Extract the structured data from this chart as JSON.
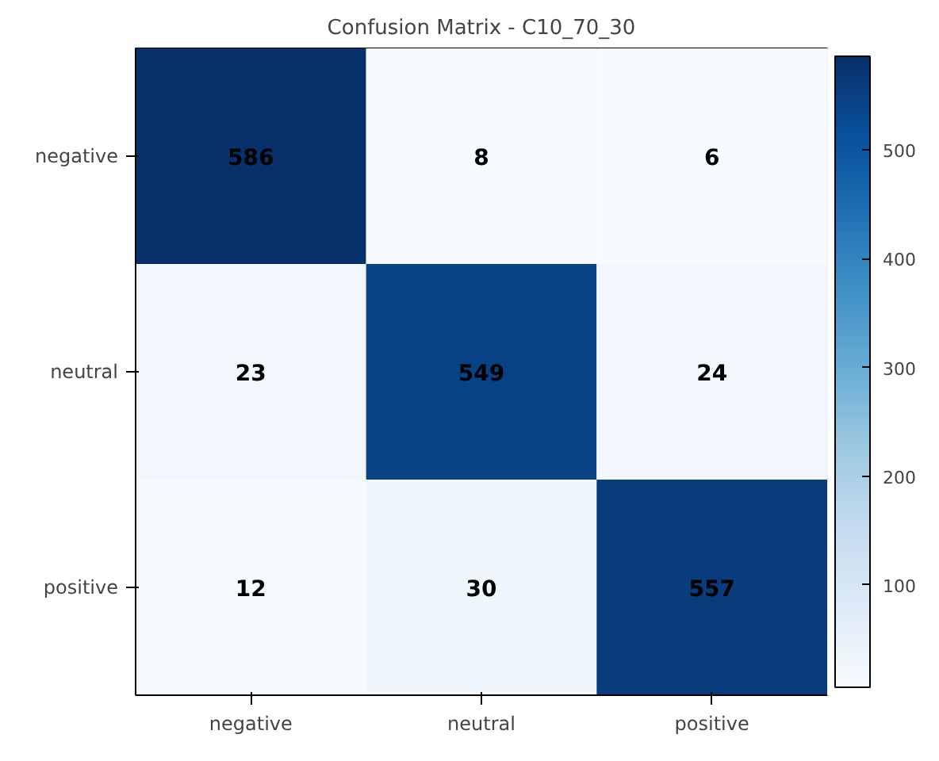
{
  "chart_data": {
    "type": "heatmap",
    "title": "Confusion Matrix - C10_70_30",
    "categories": [
      "negative",
      "neutral",
      "positive"
    ],
    "y_categories": [
      "negative",
      "neutral",
      "positive"
    ],
    "cells": [
      [
        586,
        8,
        6
      ],
      [
        23,
        549,
        24
      ],
      [
        12,
        30,
        557
      ]
    ],
    "data_labels": true,
    "clim": [
      6,
      586
    ],
    "cticks": [
      100,
      200,
      300,
      400,
      500
    ]
  }
}
